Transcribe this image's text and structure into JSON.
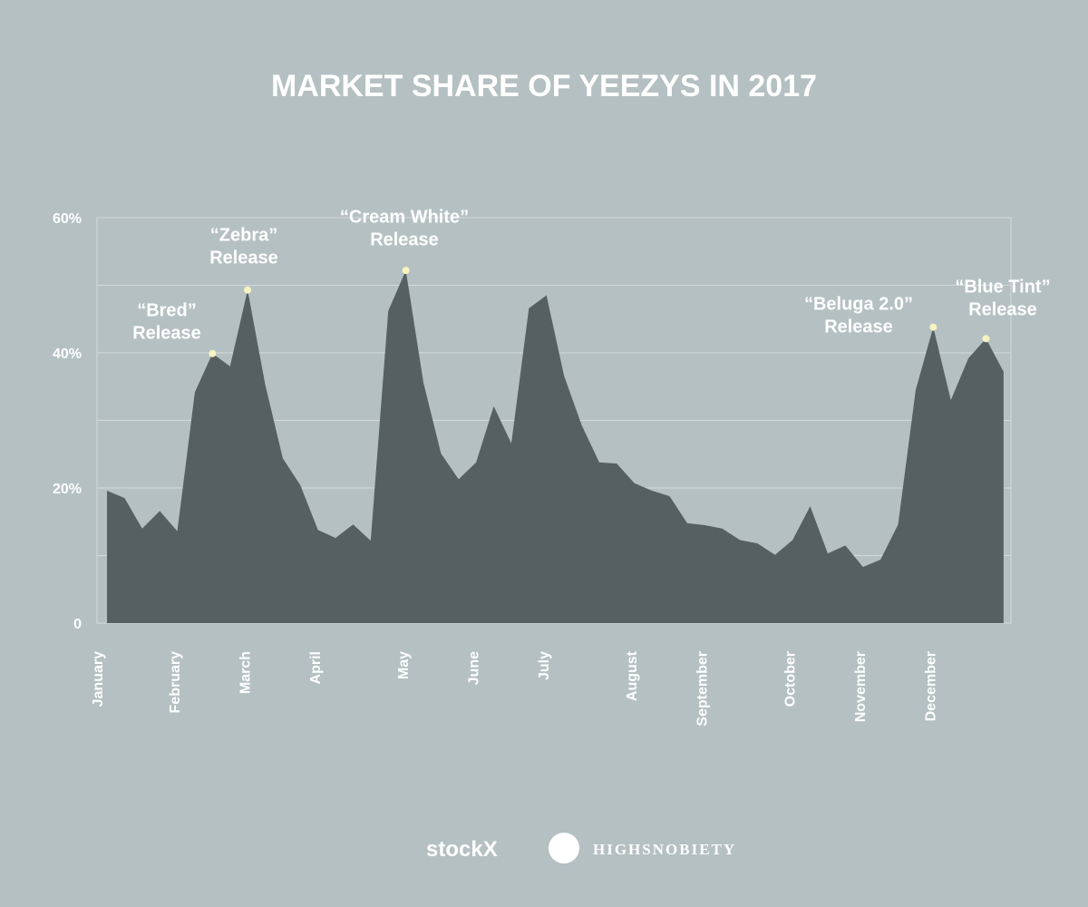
{
  "chart_data": {
    "type": "area",
    "title": "MARKET SHARE OF YEEZYS IN 2017",
    "categories": [
      "January",
      null,
      null,
      null,
      "February",
      null,
      null,
      null,
      "March",
      null,
      null,
      null,
      "April",
      null,
      null,
      null,
      null,
      "May",
      null,
      null,
      null,
      "June",
      null,
      null,
      null,
      "July",
      null,
      null,
      null,
      null,
      "August",
      null,
      null,
      null,
      "September",
      null,
      null,
      null,
      null,
      "October",
      null,
      null,
      null,
      "November",
      null,
      null,
      null,
      "December",
      null,
      null,
      null,
      null
    ],
    "values": [
      19.6,
      18.5,
      14.0,
      16.6,
      13.6,
      34.2,
      39.9,
      38.0,
      49.3,
      35.3,
      24.4,
      20.4,
      13.8,
      12.6,
      14.6,
      12.2,
      46.2,
      52.2,
      35.6,
      25.1,
      21.3,
      23.8,
      32.1,
      26.6,
      46.6,
      48.5,
      36.6,
      29.3,
      23.8,
      23.6,
      20.7,
      19.6,
      18.8,
      14.8,
      14.5,
      14.0,
      12.3,
      11.8,
      10.1,
      12.3,
      17.3,
      10.3,
      11.5,
      8.3,
      9.4,
      14.6,
      34.5,
      43.8,
      33.0,
      39.2,
      42.1,
      37.2
    ],
    "color": "#566061",
    "ylim": [
      0,
      60
    ],
    "yticks": [
      0,
      {
        "value": 20,
        "label": "20%"
      },
      {
        "value": 40,
        "label": "40%"
      },
      {
        "value": 60,
        "label": "60%"
      }
    ],
    "minor_grid": [
      10,
      30,
      50
    ],
    "grid": true,
    "annotations": [
      [
        "“Bred”",
        "Release"
      ],
      [
        "“Zebra”",
        "Release"
      ],
      [
        "“Cream White”",
        "Release"
      ],
      [
        "“Beluga 2.0”",
        "Release"
      ],
      [
        "“Blue Tint”",
        "Release"
      ]
    ]
  },
  "logos": [
    "stockX",
    "HIGHSNOBIETY"
  ]
}
